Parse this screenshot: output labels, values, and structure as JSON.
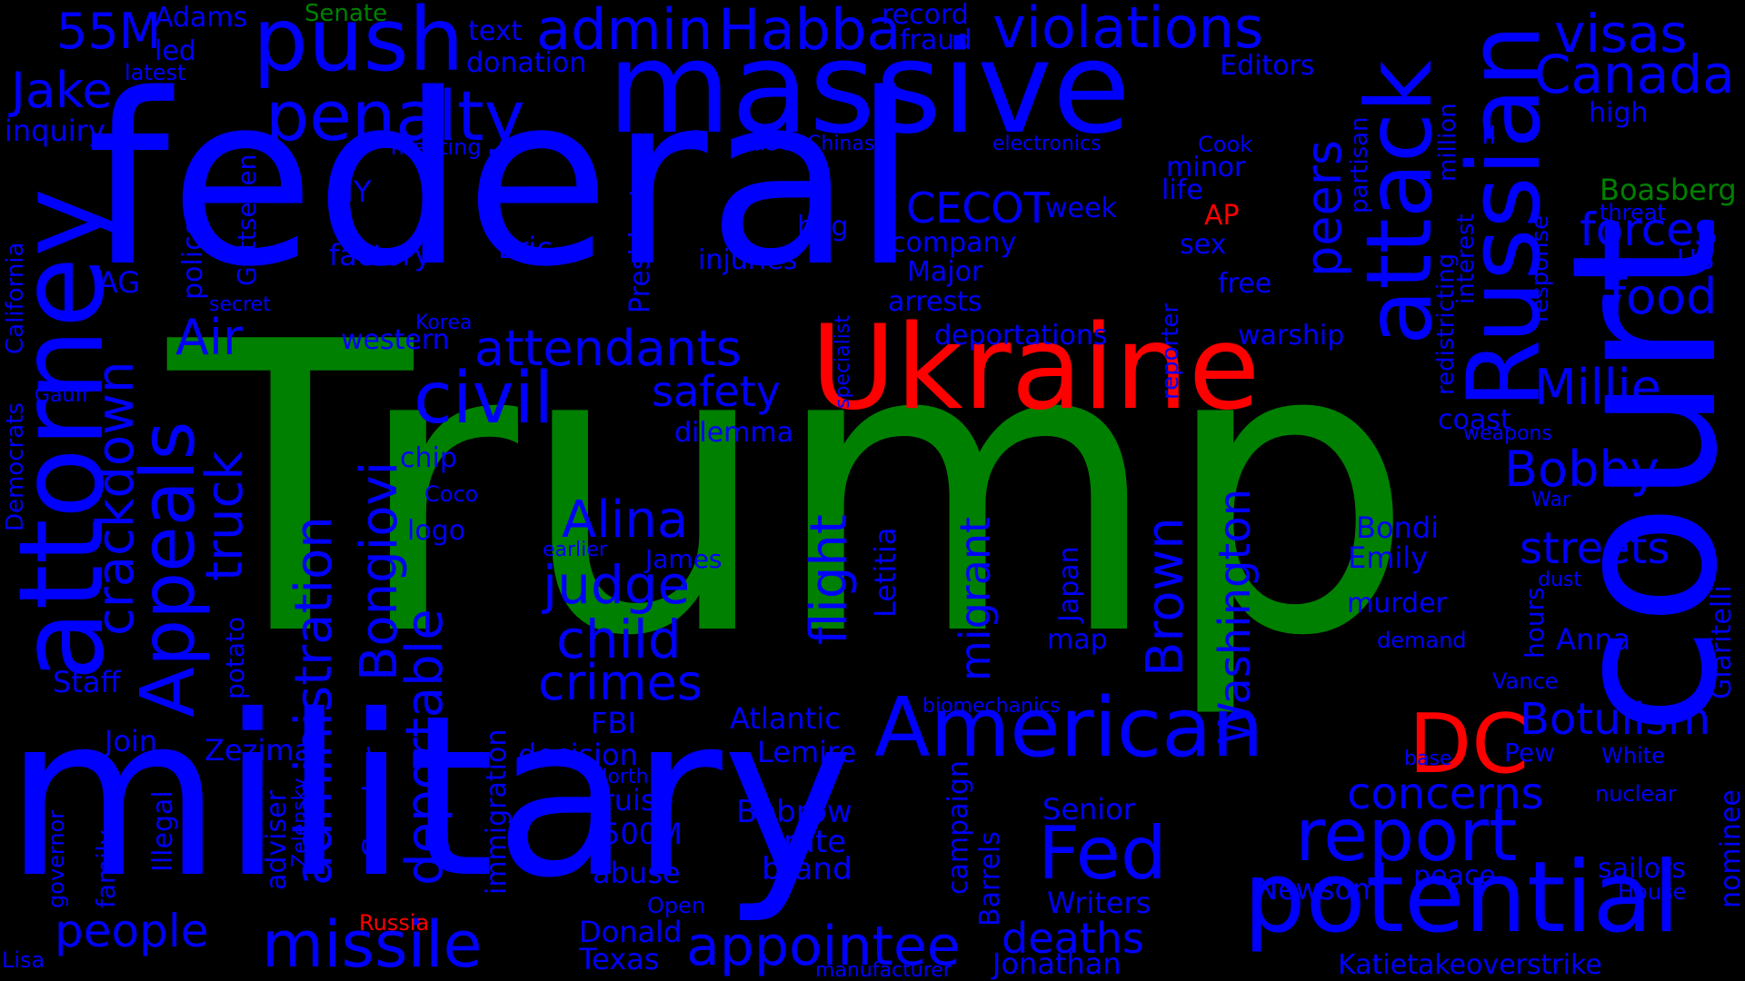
{
  "palette": {
    "background": "#000000",
    "blue": "#0000FF",
    "green": "#008000",
    "red": "#FF0000"
  },
  "words": [
    {
      "id": "trump",
      "text": "Trump",
      "color": "green"
    },
    {
      "id": "federal",
      "text": "federal",
      "color": "blue"
    },
    {
      "id": "military",
      "text": "military",
      "color": "blue"
    },
    {
      "id": "court",
      "text": "court",
      "color": "blue"
    },
    {
      "id": "massive",
      "text": "massive",
      "color": "blue"
    },
    {
      "id": "ukraine",
      "text": "Ukraine",
      "color": "red"
    },
    {
      "id": "attorney",
      "text": "attorney",
      "color": "blue"
    },
    {
      "id": "russian",
      "text": "Russian",
      "color": "blue"
    },
    {
      "id": "attack",
      "text": "attack",
      "color": "blue"
    },
    {
      "id": "potential",
      "text": "potential",
      "color": "blue"
    },
    {
      "id": "american",
      "text": "American",
      "color": "blue"
    },
    {
      "id": "push",
      "text": "push",
      "color": "blue"
    },
    {
      "id": "penalty",
      "text": "penalty",
      "color": "blue"
    },
    {
      "id": "violations",
      "text": "violations",
      "color": "blue"
    },
    {
      "id": "admin",
      "text": "admin",
      "color": "blue"
    },
    {
      "id": "habba",
      "text": "Habba",
      "color": "blue"
    },
    {
      "id": "visas",
      "text": "visas",
      "color": "blue"
    },
    {
      "id": "canada",
      "text": "Canada",
      "color": "blue"
    },
    {
      "id": "missile",
      "text": "missile",
      "color": "blue"
    },
    {
      "id": "appointee",
      "text": "appointee",
      "color": "blue"
    },
    {
      "id": "report",
      "text": "report",
      "color": "blue"
    },
    {
      "id": "fed",
      "text": "Fed",
      "color": "blue"
    },
    {
      "id": "dc",
      "text": "DC",
      "color": "red"
    },
    {
      "id": "civil",
      "text": "civil",
      "color": "blue"
    },
    {
      "id": "attendants",
      "text": "attendants",
      "color": "blue"
    },
    {
      "id": "appeals",
      "text": "Appeals",
      "color": "blue"
    },
    {
      "id": "jake",
      "text": "Jake",
      "color": "blue"
    },
    {
      "id": "55m",
      "text": "55M",
      "color": "blue"
    },
    {
      "id": "millie",
      "text": "Millie",
      "color": "blue"
    },
    {
      "id": "bobby",
      "text": "Bobby",
      "color": "blue"
    },
    {
      "id": "food",
      "text": "food",
      "color": "blue"
    },
    {
      "id": "forces",
      "text": "forces",
      "color": "blue"
    },
    {
      "id": "streets",
      "text": "streets",
      "color": "blue"
    },
    {
      "id": "botulism",
      "text": "Botulism",
      "color": "blue"
    },
    {
      "id": "concerns",
      "text": "concerns",
      "color": "blue"
    },
    {
      "id": "alina",
      "text": "Alina",
      "color": "blue"
    },
    {
      "id": "judge",
      "text": "judge",
      "color": "blue"
    },
    {
      "id": "child",
      "text": "child",
      "color": "blue"
    },
    {
      "id": "crimes",
      "text": "crimes",
      "color": "blue"
    },
    {
      "id": "safety",
      "text": "safety",
      "color": "blue"
    },
    {
      "id": "air",
      "text": "Air",
      "color": "blue"
    },
    {
      "id": "cecot",
      "text": "CECOT",
      "color": "blue"
    },
    {
      "id": "deaths",
      "text": "deaths",
      "color": "blue"
    },
    {
      "id": "people",
      "text": "people",
      "color": "blue"
    },
    {
      "id": "administration",
      "text": "administration",
      "color": "blue"
    },
    {
      "id": "deportable",
      "text": "deportable",
      "color": "blue"
    },
    {
      "id": "bongiovi",
      "text": "Bongiovi",
      "color": "blue"
    },
    {
      "id": "crackdown",
      "text": "crackdown",
      "color": "blue"
    },
    {
      "id": "truck",
      "text": "truck",
      "color": "blue"
    },
    {
      "id": "flight",
      "text": "flight",
      "color": "blue"
    },
    {
      "id": "brown",
      "text": "Brown",
      "color": "blue"
    },
    {
      "id": "washington",
      "text": "Washington",
      "color": "blue"
    },
    {
      "id": "peers",
      "text": "peers",
      "color": "blue"
    },
    {
      "id": "migrant",
      "text": "migrant",
      "color": "blue"
    },
    {
      "id": "jonathan",
      "text": "Jonathan",
      "color": "blue"
    },
    {
      "id": "newsom",
      "text": "Newsom",
      "color": "blue"
    },
    {
      "id": "writers",
      "text": "Writers",
      "color": "blue"
    },
    {
      "id": "senior",
      "text": "Senior",
      "color": "blue"
    },
    {
      "id": "bobrow",
      "text": "Bobrow",
      "color": "blue"
    },
    {
      "id": "rate",
      "text": "rate",
      "color": "blue"
    },
    {
      "id": "brand",
      "text": "brand",
      "color": "blue"
    },
    {
      "id": "atlantic",
      "text": "Atlantic",
      "color": "blue"
    },
    {
      "id": "lemire",
      "text": "Lemire",
      "color": "blue"
    },
    {
      "id": "decision",
      "text": "decision",
      "color": "blue"
    },
    {
      "id": "cruise",
      "text": "cruise",
      "color": "blue"
    },
    {
      "id": "500m",
      "text": "500M",
      "color": "blue"
    },
    {
      "id": "abuse",
      "text": "abuse",
      "color": "blue"
    },
    {
      "id": "donald",
      "text": "Donald",
      "color": "blue"
    },
    {
      "id": "texas",
      "text": "Texas",
      "color": "blue"
    },
    {
      "id": "fbi",
      "text": "FBI",
      "color": "blue"
    },
    {
      "id": "zezima",
      "text": "Zezima",
      "color": "blue"
    },
    {
      "id": "join",
      "text": "Join",
      "color": "blue"
    },
    {
      "id": "staff",
      "text": "Staff",
      "color": "blue"
    },
    {
      "id": "inquiry",
      "text": "inquiry",
      "color": "blue"
    },
    {
      "id": "adams",
      "text": "Adams",
      "color": "blue"
    },
    {
      "id": "led",
      "text": "led",
      "color": "blue"
    },
    {
      "id": "latest",
      "text": "latest",
      "color": "blue"
    },
    {
      "id": "senate",
      "text": "Senate",
      "color": "green"
    },
    {
      "id": "text",
      "text": "text",
      "color": "blue"
    },
    {
      "id": "donation",
      "text": "donation",
      "color": "blue"
    },
    {
      "id": "record",
      "text": "record",
      "color": "blue"
    },
    {
      "id": "fraud",
      "text": "fraud",
      "color": "blue"
    },
    {
      "id": "editors",
      "text": "Editors",
      "color": "blue"
    },
    {
      "id": "high",
      "text": "high",
      "color": "blue"
    },
    {
      "id": "boasberg",
      "text": "Boasberg",
      "color": "green"
    },
    {
      "id": "threat",
      "text": "threat",
      "color": "blue"
    },
    {
      "id": "us",
      "text": "US",
      "color": "blue"
    },
    {
      "id": "ap",
      "text": "AP",
      "color": "red"
    },
    {
      "id": "russia",
      "text": "Russia",
      "color": "red"
    },
    {
      "id": "week",
      "text": "week",
      "color": "blue"
    },
    {
      "id": "company",
      "text": "company",
      "color": "blue"
    },
    {
      "id": "major",
      "text": "Major",
      "color": "blue"
    },
    {
      "id": "arrests",
      "text": "arrests",
      "color": "blue"
    },
    {
      "id": "deportations",
      "text": "deportations",
      "color": "blue"
    },
    {
      "id": "warship",
      "text": "warship",
      "color": "blue"
    },
    {
      "id": "free",
      "text": "free",
      "color": "blue"
    },
    {
      "id": "sex",
      "text": "sex",
      "color": "blue"
    },
    {
      "id": "life",
      "text": "life",
      "color": "blue"
    },
    {
      "id": "minor",
      "text": "minor",
      "color": "blue"
    },
    {
      "id": "cook",
      "text": "Cook",
      "color": "blue"
    },
    {
      "id": "ii",
      "text": "II",
      "color": "blue"
    },
    {
      "id": "case",
      "text": "case",
      "color": "blue"
    },
    {
      "id": "chinas",
      "text": "Chinas",
      "color": "blue"
    },
    {
      "id": "electronics",
      "text": "electronics",
      "color": "blue"
    },
    {
      "id": "meeting",
      "text": "meeting",
      "color": "blue"
    },
    {
      "id": "ny",
      "text": "NY",
      "color": "blue"
    },
    {
      "id": "eric",
      "text": "Eric",
      "color": "blue"
    },
    {
      "id": "factory",
      "text": "factory",
      "color": "blue"
    },
    {
      "id": "bag",
      "text": "bag",
      "color": "blue"
    },
    {
      "id": "injuries",
      "text": "injuries",
      "color": "blue"
    },
    {
      "id": "ag",
      "text": "AG",
      "color": "blue"
    },
    {
      "id": "secret",
      "text": "secret",
      "color": "blue"
    },
    {
      "id": "korea",
      "text": "Korea",
      "color": "blue"
    },
    {
      "id": "western",
      "text": "western",
      "color": "blue"
    },
    {
      "id": "gauff",
      "text": "Gauff",
      "color": "blue"
    },
    {
      "id": "chip",
      "text": "chip",
      "color": "blue"
    },
    {
      "id": "coco",
      "text": "Coco",
      "color": "blue"
    },
    {
      "id": "logo",
      "text": "logo",
      "color": "blue"
    },
    {
      "id": "dilemma",
      "text": "dilemma",
      "color": "blue"
    },
    {
      "id": "earlier",
      "text": "earlier",
      "color": "blue"
    },
    {
      "id": "james",
      "text": "James",
      "color": "blue"
    },
    {
      "id": "map",
      "text": "map",
      "color": "blue"
    },
    {
      "id": "bondi",
      "text": "Bondi",
      "color": "blue"
    },
    {
      "id": "emily",
      "text": "Emily",
      "color": "blue"
    },
    {
      "id": "murder",
      "text": "murder",
      "color": "blue"
    },
    {
      "id": "demand",
      "text": "demand",
      "color": "blue"
    },
    {
      "id": "coast",
      "text": "coast",
      "color": "blue"
    },
    {
      "id": "weapons",
      "text": "weapons",
      "color": "blue"
    },
    {
      "id": "war",
      "text": "War",
      "color": "blue"
    },
    {
      "id": "dust",
      "text": "dust",
      "color": "blue"
    },
    {
      "id": "anna",
      "text": "Anna",
      "color": "blue"
    },
    {
      "id": "vance",
      "text": "Vance",
      "color": "blue"
    },
    {
      "id": "pew",
      "text": "Pew",
      "color": "blue"
    },
    {
      "id": "white",
      "text": "White",
      "color": "blue"
    },
    {
      "id": "base",
      "text": "base",
      "color": "blue"
    },
    {
      "id": "nuclear",
      "text": "nuclear",
      "color": "blue"
    },
    {
      "id": "sailors",
      "text": "sailors",
      "color": "blue"
    },
    {
      "id": "house",
      "text": "House",
      "color": "blue"
    },
    {
      "id": "peace",
      "text": "peace",
      "color": "blue"
    },
    {
      "id": "biomechanics",
      "text": "biomechanics",
      "color": "blue"
    },
    {
      "id": "north",
      "text": "North",
      "color": "blue"
    },
    {
      "id": "open",
      "text": "Open",
      "color": "blue"
    },
    {
      "id": "manufacturer",
      "text": "manufacturer",
      "color": "blue"
    },
    {
      "id": "katietakeoverstrike",
      "text": "Katietakeoverstrike",
      "color": "blue"
    },
    {
      "id": "lisa",
      "text": "Lisa",
      "color": "blue"
    },
    {
      "id": "california",
      "text": "California",
      "color": "blue"
    },
    {
      "id": "democrats",
      "text": "Democrats",
      "color": "blue"
    },
    {
      "id": "police",
      "text": "police",
      "color": "blue"
    },
    {
      "id": "gottsegen",
      "text": "Gottsegen",
      "color": "blue"
    },
    {
      "id": "president",
      "text": "President",
      "color": "blue"
    },
    {
      "id": "specialist",
      "text": "specialist",
      "color": "blue"
    },
    {
      "id": "reporter",
      "text": "reporter",
      "color": "blue"
    },
    {
      "id": "partisan",
      "text": "partisan",
      "color": "blue"
    },
    {
      "id": "redistricting",
      "text": "redistricting",
      "color": "blue"
    },
    {
      "id": "interest",
      "text": "interest",
      "color": "blue"
    },
    {
      "id": "million",
      "text": "million",
      "color": "blue"
    },
    {
      "id": "response",
      "text": "response",
      "color": "blue"
    },
    {
      "id": "giaritelli",
      "text": "Giaritelli",
      "color": "blue"
    },
    {
      "id": "nominee",
      "text": "nominee",
      "color": "blue"
    },
    {
      "id": "hours",
      "text": "hours",
      "color": "blue"
    },
    {
      "id": "letitia",
      "text": "Letitia",
      "color": "blue"
    },
    {
      "id": "japan",
      "text": "Japan",
      "color": "blue"
    },
    {
      "id": "campaign",
      "text": "campaign",
      "color": "blue"
    },
    {
      "id": "barrels",
      "text": "Barrels",
      "color": "blue"
    },
    {
      "id": "immigration",
      "text": "immigration",
      "color": "blue"
    },
    {
      "id": "cracker",
      "text": "Cracker",
      "color": "blue"
    },
    {
      "id": "adviser",
      "text": "adviser",
      "color": "blue"
    },
    {
      "id": "zelensky",
      "text": "Zelensky",
      "color": "blue"
    },
    {
      "id": "potato",
      "text": "potato",
      "color": "blue"
    },
    {
      "id": "illegal",
      "text": "Illegal",
      "color": "blue"
    },
    {
      "id": "family",
      "text": "family",
      "color": "blue"
    },
    {
      "id": "governor",
      "text": "governor",
      "color": "blue"
    }
  ]
}
